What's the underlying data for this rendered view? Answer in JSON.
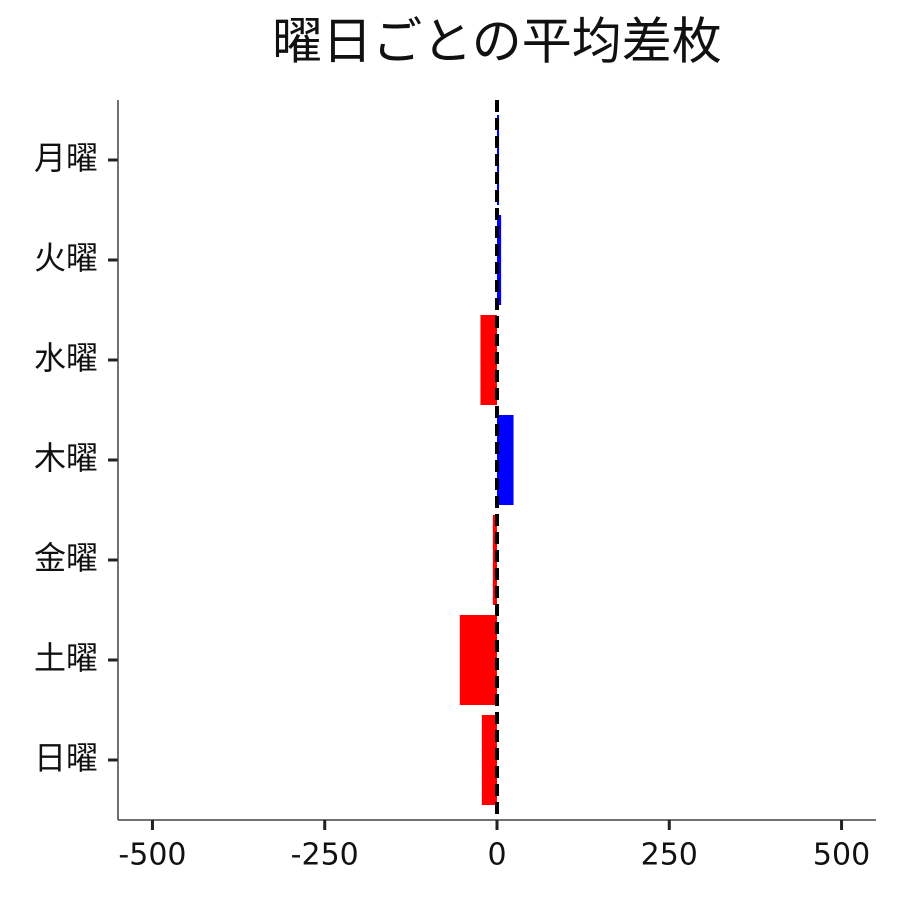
{
  "chart_data": {
    "type": "barh",
    "title": "曜日ごとの平均差枚",
    "categories": [
      "月曜",
      "火曜",
      "水曜",
      "木曜",
      "金曜",
      "土曜",
      "日曜"
    ],
    "values": [
      3,
      6,
      -24,
      24,
      -6,
      -54,
      -22
    ],
    "colors": [
      "#0000ff",
      "#0000ff",
      "#ff0000",
      "#0000ff",
      "#ff0000",
      "#ff0000",
      "#ff0000"
    ],
    "xlim": [
      -550,
      550
    ],
    "xticks": [
      -500,
      -250,
      0,
      250,
      500
    ],
    "reference_line": 0
  }
}
